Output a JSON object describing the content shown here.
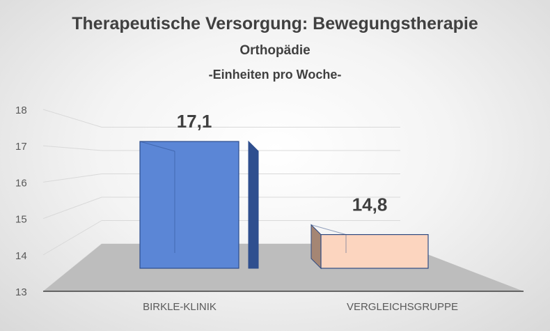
{
  "chart_data": {
    "type": "bar",
    "title": "Therapeutische Versorgung: Bewegungstherapie",
    "subtitle": "Orthopädie",
    "subtitle2": "-Einheiten pro Woche-",
    "categories": [
      "BIRKLE-KLINIK",
      "VERGLEICHSGRUPPE"
    ],
    "values": [
      17.1,
      14.8
    ],
    "data_labels": [
      "17,1",
      "14,8"
    ],
    "ylim": [
      13,
      18
    ],
    "yticks": [
      "13",
      "14",
      "15",
      "16",
      "17",
      "18"
    ],
    "grid": true,
    "legend": "none",
    "colors": {
      "bar1_front": "#5b86d6",
      "bar1_side": "#2f4f8f",
      "bar1_edge": "#2c4c8c",
      "bar2_front": "#fcd5bf",
      "bar2_side": "#a58674",
      "bar2_edge": "#2e4a82",
      "floor": "#bdbdbd",
      "axis_text": "#595959",
      "label_text": "#404040"
    }
  }
}
